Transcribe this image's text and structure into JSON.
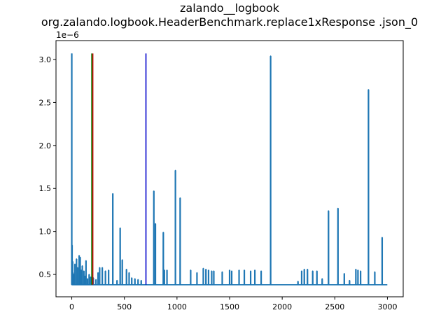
{
  "chart_data": {
    "type": "line",
    "title": "zalando__logbook",
    "subtitle": "org.zalando.logbook.HeaderBenchmark.replace1xResponse .json_0",
    "xlabel": "",
    "ylabel": "",
    "y_offset_label": "1e−6",
    "y_scale": 1e-06,
    "xlim": [
      -150,
      3150
    ],
    "ylim": [
      0.24,
      3.22
    ],
    "x_ticks": [
      0,
      500,
      1000,
      1500,
      2000,
      2500,
      3000
    ],
    "x_tick_labels": [
      "0",
      "500",
      "1000",
      "1500",
      "2000",
      "2500",
      "3000"
    ],
    "y_ticks": [
      0.5,
      1.0,
      1.5,
      2.0,
      2.5,
      3.0
    ],
    "y_tick_labels": [
      "0.5",
      "1.0",
      "1.5",
      "2.0",
      "2.5",
      "3.0"
    ],
    "grid": false,
    "series": [
      {
        "color": "#1f77b4",
        "baseline": 0.38,
        "n_points": 3000,
        "spikes": [
          [
            0,
            3.07
          ],
          [
            3,
            0.84
          ],
          [
            8,
            0.65
          ],
          [
            12,
            0.52
          ],
          [
            20,
            0.5
          ],
          [
            30,
            0.62
          ],
          [
            45,
            0.68
          ],
          [
            55,
            0.58
          ],
          [
            70,
            0.72
          ],
          [
            80,
            0.7
          ],
          [
            90,
            0.55
          ],
          [
            100,
            0.6
          ],
          [
            115,
            0.54
          ],
          [
            125,
            0.48
          ],
          [
            135,
            0.66
          ],
          [
            150,
            0.45
          ],
          [
            165,
            0.5
          ],
          [
            180,
            0.47
          ],
          [
            205,
            0.46
          ],
          [
            230,
            0.44
          ],
          [
            250,
            0.52
          ],
          [
            265,
            0.58
          ],
          [
            290,
            0.58
          ],
          [
            320,
            0.54
          ],
          [
            350,
            0.55
          ],
          [
            390,
            1.44
          ],
          [
            430,
            0.43
          ],
          [
            460,
            1.04
          ],
          [
            480,
            0.67
          ],
          [
            520,
            0.56
          ],
          [
            545,
            0.52
          ],
          [
            570,
            0.46
          ],
          [
            600,
            0.45
          ],
          [
            630,
            0.44
          ],
          [
            660,
            0.43
          ],
          [
            780,
            1.47
          ],
          [
            795,
            1.09
          ],
          [
            870,
            0.99
          ],
          [
            880,
            0.55
          ],
          [
            905,
            0.55
          ],
          [
            985,
            1.71
          ],
          [
            1030,
            1.39
          ],
          [
            1130,
            0.55
          ],
          [
            1190,
            0.52
          ],
          [
            1250,
            0.57
          ],
          [
            1275,
            0.56
          ],
          [
            1300,
            0.55
          ],
          [
            1330,
            0.54
          ],
          [
            1350,
            0.54
          ],
          [
            1430,
            0.53
          ],
          [
            1500,
            0.55
          ],
          [
            1520,
            0.54
          ],
          [
            1590,
            0.55
          ],
          [
            1640,
            0.55
          ],
          [
            1700,
            0.54
          ],
          [
            1740,
            0.55
          ],
          [
            1800,
            0.54
          ],
          [
            1890,
            3.04
          ],
          [
            2150,
            0.42
          ],
          [
            2185,
            0.54
          ],
          [
            2210,
            0.56
          ],
          [
            2240,
            0.56
          ],
          [
            2290,
            0.54
          ],
          [
            2330,
            0.54
          ],
          [
            2380,
            0.45
          ],
          [
            2440,
            1.24
          ],
          [
            2530,
            1.27
          ],
          [
            2590,
            0.51
          ],
          [
            2640,
            0.43
          ],
          [
            2700,
            0.56
          ],
          [
            2720,
            0.55
          ],
          [
            2745,
            0.54
          ],
          [
            2820,
            2.65
          ],
          [
            2880,
            0.53
          ],
          [
            2950,
            0.93
          ]
        ]
      }
    ],
    "vlines": [
      {
        "x": 190,
        "color": "#008000",
        "y_min": 0.38,
        "y_max": 3.07
      },
      {
        "x": 200,
        "color": "#cc0000",
        "y_min": 0.38,
        "y_max": 3.07
      },
      {
        "x": 705,
        "color": "#0000cc",
        "y_min": 0.38,
        "y_max": 3.07
      }
    ]
  }
}
